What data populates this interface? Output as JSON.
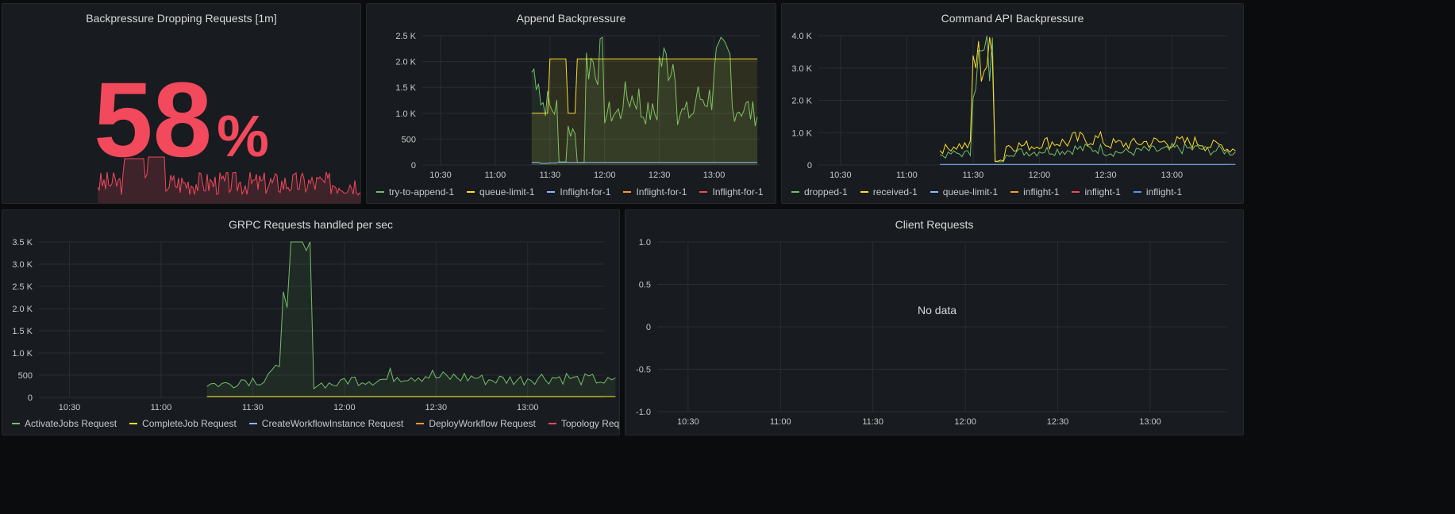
{
  "colors": {
    "green": "#73bf69",
    "yellow": "#fade2a",
    "blue": "#5794f2",
    "cyan": "#8ab8ff",
    "orange": "#ff9830",
    "red": "#f2495c",
    "grid": "#2a2d32"
  },
  "panels": {
    "stat": {
      "title": "Backpressure Dropping Requests [1m]",
      "value": "58",
      "unit": "%"
    },
    "append": {
      "title": "Append Backpressure",
      "legend": [
        {
          "label": "try-to-append-1",
          "color": "#73bf69"
        },
        {
          "label": "queue-limit-1",
          "color": "#fade2a"
        },
        {
          "label": "Inflight-for-1",
          "color": "#8ab8ff"
        },
        {
          "label": "Inflight-for-1",
          "color": "#ff9830"
        },
        {
          "label": "Inflight-for-1",
          "color": "#f2495c"
        }
      ]
    },
    "command": {
      "title": "Command API Backpressure",
      "legend": [
        {
          "label": "dropped-1",
          "color": "#73bf69"
        },
        {
          "label": "received-1",
          "color": "#fade2a"
        },
        {
          "label": "queue-limit-1",
          "color": "#8ab8ff"
        },
        {
          "label": "inflight-1",
          "color": "#ff9830"
        },
        {
          "label": "inflight-1",
          "color": "#f2495c"
        },
        {
          "label": "inflight-1",
          "color": "#5794f2"
        }
      ]
    },
    "grpc": {
      "title": "GRPC Requests handled per sec",
      "legend": [
        {
          "label": "ActivateJobs Request",
          "color": "#73bf69"
        },
        {
          "label": "CompleteJob Request",
          "color": "#fade2a"
        },
        {
          "label": "CreateWorkflowInstance Request",
          "color": "#8ab8ff"
        },
        {
          "label": "DeployWorkflow Request",
          "color": "#ff9830"
        },
        {
          "label": "Topology Request",
          "color": "#f2495c"
        }
      ]
    },
    "client": {
      "title": "Client Requests",
      "no_data": "No data"
    }
  },
  "chart_data": [
    {
      "type": "line",
      "title": "Append Backpressure",
      "x_ticks": [
        "10:30",
        "11:00",
        "11:30",
        "12:00",
        "12:30",
        "13:00"
      ],
      "y_ticks": [
        "0",
        "500",
        "1.0 K",
        "1.5 K",
        "2.0 K",
        "2.5 K"
      ],
      "ylim": [
        0,
        2500
      ],
      "x": [
        "10:30",
        "11:00",
        "11:15",
        "11:20",
        "11:25",
        "11:30",
        "11:35",
        "11:40",
        "11:45",
        "11:50",
        "12:00",
        "12:10",
        "12:20",
        "12:30",
        "12:40",
        "12:50",
        "13:00",
        "13:10",
        "13:20"
      ],
      "series": [
        {
          "name": "try-to-append-1",
          "values": [
            null,
            null,
            null,
            1800,
            1200,
            1100,
            50,
            700,
            50,
            2000,
            1000,
            1300,
            1000,
            2000,
            1000,
            1300,
            2000,
            1100,
            1000
          ]
        },
        {
          "name": "queue-limit-1",
          "values": [
            null,
            null,
            null,
            1000,
            1000,
            2050,
            2050,
            1000,
            2050,
            2050,
            2050,
            2050,
            2050,
            2050,
            2050,
            2050,
            2050,
            2050,
            2050
          ]
        },
        {
          "name": "Inflight-for-1",
          "values": [
            null,
            null,
            null,
            50,
            30,
            40,
            60,
            50,
            50,
            50,
            50,
            50,
            50,
            50,
            50,
            50,
            50,
            50,
            50
          ]
        }
      ]
    },
    {
      "type": "line",
      "title": "Command API Backpressure",
      "x_ticks": [
        "10:30",
        "11:00",
        "11:30",
        "12:00",
        "12:30",
        "13:00"
      ],
      "y_ticks": [
        "0",
        "1.0 K",
        "2.0 K",
        "3.0 K",
        "4.0 K"
      ],
      "ylim": [
        0,
        4000
      ],
      "x": [
        "10:30",
        "11:00",
        "11:15",
        "11:20",
        "11:30",
        "11:35",
        "11:40",
        "11:45",
        "12:00",
        "12:15",
        "12:30",
        "12:45",
        "13:00",
        "13:15",
        "13:25"
      ],
      "series": [
        {
          "name": "dropped-1",
          "values": [
            null,
            null,
            300,
            350,
            3100,
            3200,
            100,
            400,
            450,
            500,
            400,
            450,
            500,
            450,
            400
          ]
        },
        {
          "name": "received-1",
          "values": [
            null,
            null,
            500,
            600,
            3200,
            3200,
            150,
            600,
            700,
            800,
            650,
            700,
            700,
            600,
            500
          ]
        },
        {
          "name": "queue-limit-1",
          "values": [
            null,
            null,
            20,
            20,
            20,
            20,
            20,
            20,
            20,
            20,
            20,
            20,
            20,
            20,
            20
          ]
        }
      ]
    },
    {
      "type": "line",
      "title": "GRPC Requests handled per sec",
      "x_ticks": [
        "10:30",
        "11:00",
        "11:30",
        "12:00",
        "12:30",
        "13:00"
      ],
      "y_ticks": [
        "0",
        "500",
        "1.0 K",
        "1.5 K",
        "2.0 K",
        "2.5 K",
        "3.0 K",
        "3.5 K"
      ],
      "ylim": [
        0,
        3500
      ],
      "x": [
        "10:30",
        "11:00",
        "11:15",
        "11:25",
        "11:35",
        "11:40",
        "11:45",
        "11:50",
        "12:00",
        "12:15",
        "12:30",
        "12:45",
        "13:00",
        "13:15",
        "13:25"
      ],
      "series": [
        {
          "name": "ActivateJobs Request",
          "values": [
            null,
            null,
            300,
            400,
            550,
            3100,
            3150,
            300,
            400,
            500,
            450,
            400,
            450,
            400,
            350
          ]
        },
        {
          "name": "CompleteJob Request",
          "values": [
            null,
            null,
            20,
            20,
            20,
            20,
            20,
            20,
            20,
            20,
            20,
            20,
            20,
            20,
            20
          ]
        }
      ]
    },
    {
      "type": "line",
      "title": "Client Requests",
      "x_ticks": [
        "10:30",
        "11:00",
        "11:30",
        "12:00",
        "12:30",
        "13:00"
      ],
      "y_ticks": [
        "-1.0",
        "-0.5",
        "0",
        "0.5",
        "1.0"
      ],
      "ylim": [
        -1,
        1
      ],
      "series": []
    }
  ]
}
